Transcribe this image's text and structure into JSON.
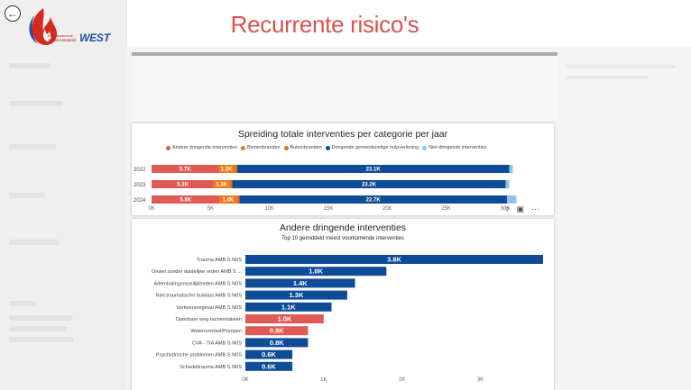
{
  "header": {
    "title": "Recurrente risico's"
  },
  "logo": {
    "line1": "Brandweerzone",
    "line2": "Vlaams-Brabant",
    "brand": "WEST"
  },
  "back_icon": "arrow-left-icon",
  "chart1_icons": [
    "filter-icon",
    "focus-mode-icon",
    "more-options-icon"
  ],
  "colors": {
    "andere": "#e05a55",
    "binnen": "#f07c1a",
    "buiten": "#e6700c",
    "dringend": "#0f4c96",
    "niet_dringend": "#8fc3e8",
    "title_red": "#d9534f"
  },
  "chart_data": [
    {
      "type": "bar",
      "orientation": "horizontal-stacked",
      "title": "Spreiding totale interventies per categorie per jaar",
      "categories": [
        "2022",
        "2023",
        "2024"
      ],
      "series": [
        {
          "name": "Andere dringende interventies",
          "values": [
            5700,
            5300,
            5800
          ],
          "labels": [
            "5.7K",
            "5.3K",
            "5.8K"
          ],
          "color": "#e05a55"
        },
        {
          "name": "Binnenbranden",
          "values": [
            1300,
            1300,
            1400
          ],
          "labels": [
            "1.3K",
            "1.3K",
            "1.4K"
          ],
          "color": "#f07c1a"
        },
        {
          "name": "Buitenbranden",
          "values": [
            250,
            250,
            250
          ],
          "labels": [
            "",
            "",
            ""
          ],
          "color": "#e6700c"
        },
        {
          "name": "Dringende geneeskundige hulpverlening",
          "values": [
            23100,
            23200,
            22700
          ],
          "labels": [
            "23.1K",
            "23.2K",
            "22.7K"
          ],
          "color": "#0f4c96"
        },
        {
          "name": "Niet-dringende interventies",
          "values": [
            300,
            300,
            800
          ],
          "labels": [
            "",
            "",
            ""
          ],
          "color": "#8fc3e8"
        }
      ],
      "x_ticks": [
        "0K",
        "5K",
        "10K",
        "15K",
        "20K",
        "25K",
        "30K"
      ],
      "xlim": [
        0,
        30000
      ],
      "legend": "top"
    },
    {
      "type": "bar",
      "orientation": "horizontal",
      "title": "Andere dringende interventies",
      "subtitle": "Top 10 gemiddeld meest voorkomende interventies",
      "categories": [
        "Trauma AMB S N0S",
        "Onwel zonder duidelijke reden AMB S ...",
        "Ademhalingsmoeilijkheden AMB S N0S",
        "Niet-traumatische buiklast AMB S N0S",
        "Verkeersongeval AMB S N0S",
        "Openbare weg bomen/takken",
        "Wateroverlast/Pompen",
        "CVA - TIA AMB S N0S",
        "Psychiatrische problemen AMB S N0S",
        "Schedeltrauma AMB S N0S"
      ],
      "values": [
        3800,
        1800,
        1400,
        1300,
        1100,
        1000,
        800,
        800,
        600,
        600
      ],
      "labels": [
        "3.8K",
        "1.8K",
        "1.4K",
        "1.3K",
        "1.1K",
        "1.0K",
        "0.8K",
        "0.8K",
        "0.6K",
        "0.6K"
      ],
      "colors": [
        "#0f4c96",
        "#0f4c96",
        "#0f4c96",
        "#0f4c96",
        "#0f4c96",
        "#e05a55",
        "#e05a55",
        "#0f4c96",
        "#0f4c96",
        "#0f4c96"
      ],
      "x_ticks": [
        "0K",
        "1K",
        "2K",
        "3K"
      ],
      "xlim": [
        0,
        3800
      ]
    }
  ]
}
